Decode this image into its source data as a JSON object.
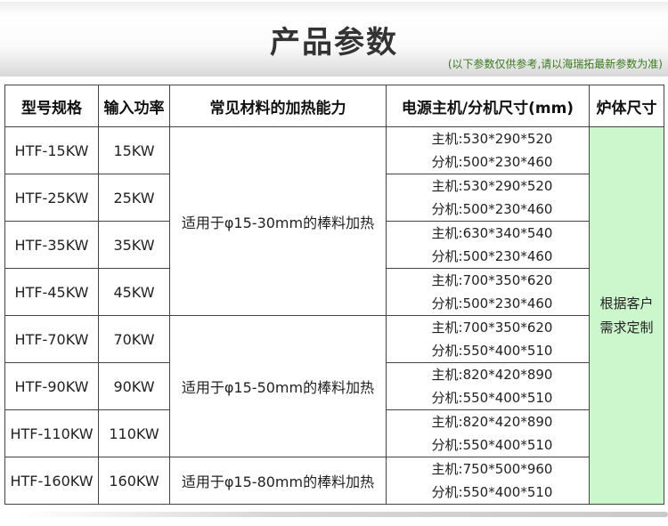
{
  "header": {
    "title": "产品参数",
    "note": "(以下参数仅供参考,请以海瑞拓最新参数为准)"
  },
  "table": {
    "columns": [
      "型号规格",
      "输入功率",
      "常见材料的加热能力",
      "电源主机/分机尺寸(mm)",
      "炉体尺寸"
    ],
    "rows": [
      {
        "model": "HTF-15KW",
        "power": "15KW",
        "host": "主机:530*290*520",
        "sub": "分机:500*230*460"
      },
      {
        "model": "HTF-25KW",
        "power": "25KW",
        "host": "主机:530*290*520",
        "sub": "分机:500*230*460"
      },
      {
        "model": "HTF-35KW",
        "power": "35KW",
        "host": "主机:630*340*540",
        "sub": "分机:500*230*460"
      },
      {
        "model": "HTF-45KW",
        "power": "45KW",
        "host": "主机:700*350*620",
        "sub": "分机:500*230*460"
      },
      {
        "model": "HTF-70KW",
        "power": "70KW",
        "host": "主机:700*350*620",
        "sub": "分机:550*400*510"
      },
      {
        "model": "HTF-90KW",
        "power": "90KW",
        "host": "主机:820*420*890",
        "sub": "分机:550*400*510"
      },
      {
        "model": "HTF-110KW",
        "power": "110KW",
        "host": "主机:820*420*890",
        "sub": "分机:550*400*510"
      },
      {
        "model": "HTF-160KW",
        "power": "160KW",
        "host": "主机:750*500*960",
        "sub": "分机:550*400*510"
      }
    ],
    "materials": [
      "适用于φ15-30mm的棒料加热",
      "适用于φ15-50mm的棒料加热",
      "适用于φ15-80mm的棒料加热"
    ],
    "furnace": [
      "根据客户",
      "需求定制"
    ]
  },
  "colors": {
    "furnace_bg": "#ccf7cc",
    "note": "#3a7a1e"
  }
}
